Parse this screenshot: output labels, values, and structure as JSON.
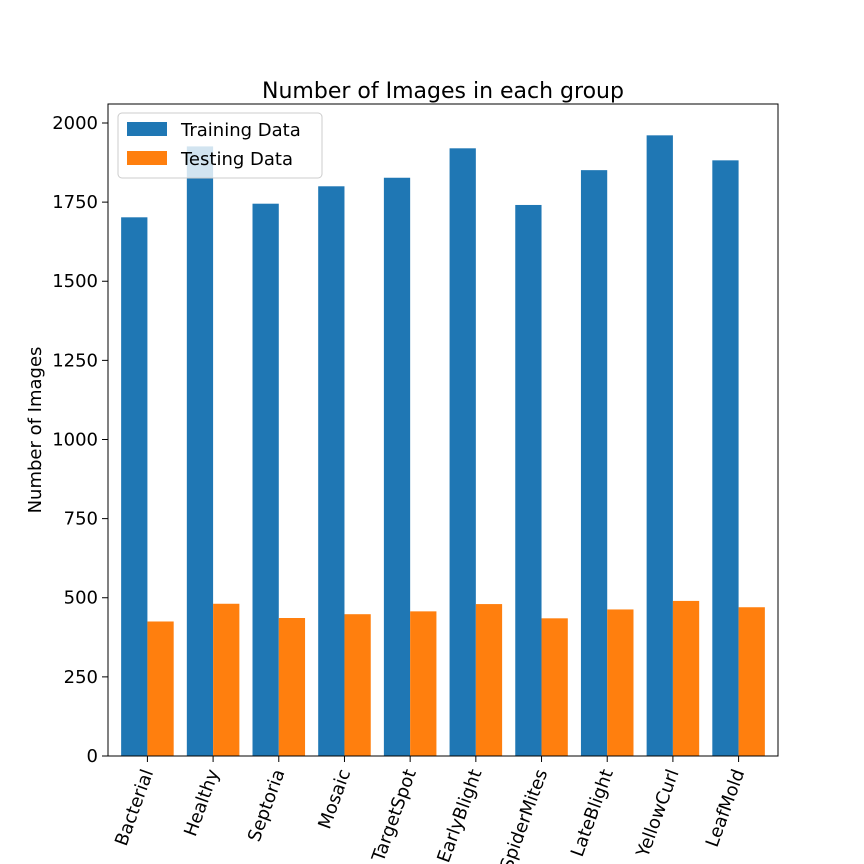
{
  "chart_data": {
    "type": "bar",
    "title": "Number of Images in each group",
    "xlabel": "",
    "ylabel": "Number of Images",
    "categories": [
      "Bacterial",
      "Healthy",
      "Septoria",
      "Mosaic",
      "TargetSpot",
      "EarlyBlight",
      "SpiderMites",
      "LateBlight",
      "YellowCurl",
      "LeafMold"
    ],
    "series": [
      {
        "name": "Training Data",
        "color": "#1f77b4",
        "values": [
          1702,
          1926,
          1745,
          1800,
          1827,
          1920,
          1741,
          1851,
          1961,
          1882
        ]
      },
      {
        "name": "Testing Data",
        "color": "#ff7f0e",
        "values": [
          425,
          481,
          436,
          448,
          457,
          480,
          435,
          463,
          490,
          470
        ]
      }
    ],
    "ylim": [
      0,
      2060
    ],
    "yticks": [
      0,
      250,
      500,
      750,
      1000,
      1250,
      1500,
      1750,
      2000
    ],
    "grid": false,
    "legend_position": "top-left"
  }
}
